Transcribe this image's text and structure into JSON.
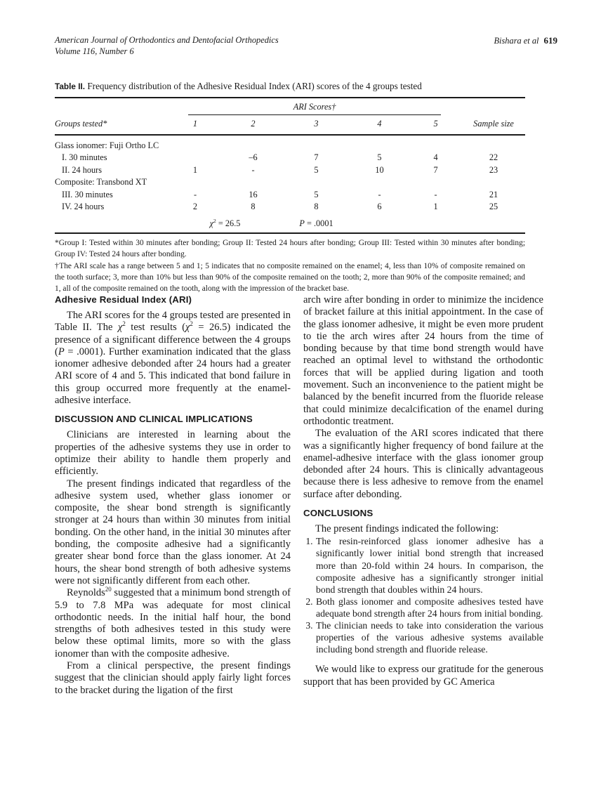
{
  "header": {
    "journal": "American Journal of Orthodontics and Dentofacial Orthopedics",
    "volume": "Volume 116, Number 6",
    "authors": "Bishara et al",
    "page_number": "619"
  },
  "table": {
    "label": "Table II.",
    "title": "Frequency distribution of the Adhesive Residual Index (ARI) scores of the 4 groups tested",
    "span_header": "ARI Scores†",
    "col_group": "Groups tested*",
    "score_cols": [
      "1",
      "2",
      "3",
      "4",
      "5"
    ],
    "col_sample": "Sample size",
    "rows": [
      {
        "label": "Glass ionomer: Fuji Ortho LC",
        "cells": [
          "",
          "",
          "",
          "",
          "",
          ""
        ]
      },
      {
        "label": "I. 30 minutes",
        "cells": [
          "",
          "–6",
          "7",
          "5",
          "4",
          "22"
        ]
      },
      {
        "label": "II. 24 hours",
        "cells": [
          "1",
          "-",
          "5",
          "10",
          "7",
          "23"
        ]
      },
      {
        "label": "Composite: Transbond XT",
        "cells": [
          "",
          "",
          "",
          "",
          "",
          ""
        ]
      },
      {
        "label": "III. 30 minutes",
        "cells": [
          "-",
          "16",
          "5",
          "-",
          "-",
          "21"
        ]
      },
      {
        "label": "IV. 24 hours",
        "cells": [
          "2",
          "8",
          "8",
          "6",
          "1",
          "25"
        ]
      }
    ],
    "chi_sym": "χ",
    "chi_sup": "2",
    "chi_rest": " = 26.5",
    "p_sym": "P",
    "p_rest": " = .0001",
    "footnote1": "*Group I: Tested within 30 minutes after bonding; Group II: Tested 24 hours after bonding; Group III: Tested within 30 minutes after bonding; Group IV: Tested 24 hours after bonding.",
    "footnote2": "†The ARI scale has a range between 5 and 1; 5 indicates that no composite remained on the enamel; 4, less than 10% of composite remained on the tooth surface; 3, more than 10% but less than 90% of the composite remained on the tooth; 2, more than 90% of the composite remained; and 1, all of the composite remained on the tooth, along with the impression of the bracket base."
  },
  "article": {
    "s1_heading": "Adhesive Residual Index (ARI)",
    "chi": "χ",
    "sup2": "2",
    "P": "P",
    "p1a": "The ARI scores for the 4 groups tested are presented in Table II. The ",
    "p1b": " test results (",
    "p1c": " = 26.5) indicated the presence of a significant difference between the 4 groups (",
    "p1d": " = .0001). Further examination indicated that the glass ionomer adhesive debonded after 24 hours had a greater ARI score of 4 and 5. This indicated that bond failure in this group occurred more frequently at the enamel-adhesive interface.",
    "s2_heading": "DISCUSSION AND CLINICAL IMPLICATIONS",
    "p2": "Clinicians are interested in learning about the properties of the adhesive systems they use in order to optimize their ability to handle them properly and efficiently.",
    "p3": "The present findings indicated that regardless of the adhesive system used, whether glass ionomer or composite, the shear bond strength is significantly stronger at 24 hours than within 30 minutes from initial bonding. On the other hand, in the initial 30 minutes after bonding, the composite adhesive had a significantly greater shear bond force than the glass ionomer. At 24 hours, the shear bond strength of both adhesive systems were not significantly different from each other.",
    "p4a": "Reynolds",
    "p4sup": "20",
    "p4b": " suggested that a minimum bond strength of 5.9 to 7.8 MPa was adequate for most clinical orthodontic needs. In the initial half hour, the bond strengths of both adhesives tested in this study were below these optimal limits, more so with the glass ionomer than with the composite adhesive.",
    "p5": "From a clinical perspective, the present findings suggest that the clinician should apply fairly light forces to the bracket during the ligation of the first",
    "p6": "arch wire after bonding in order to minimize the incidence of bracket failure at this initial appointment. In the case of the glass ionomer adhesive, it might be even more prudent to tie the arch wires after 24 hours from the time of bonding because by that time bond strength would have reached an optimal level to withstand the orthodontic forces that will be applied during ligation and tooth movement. Such an inconvenience to the patient might be balanced by the benefit incurred from the fluoride release that could minimize decalcification of the enamel during orthodontic treatment.",
    "p7": "The evaluation of the ARI scores indicated that there was a significantly higher frequency of bond failure at the enamel-adhesive interface with the glass ionomer group debonded after 24 hours. This is clinically advantageous because there is less adhesive to remove from the enamel surface after debonding.",
    "s3_heading": "CONCLUSIONS",
    "p8": "The present findings indicated the following:",
    "list": [
      "The resin-reinforced glass ionomer adhesive has a significantly lower initial bond strength that increased more than 20-fold within 24 hours. In comparison, the composite adhesive has a significantly stronger initial bond strength that doubles within 24 hours.",
      "Both glass ionomer and composite adhesives tested have adequate bond strength after 24 hours from initial bonding.",
      "The clinician needs to take into consideration the various properties of the various adhesive systems available including bond strength and fluoride release."
    ],
    "p9": "We would like to express our gratitude for the generous support that has been provided by GC America"
  }
}
